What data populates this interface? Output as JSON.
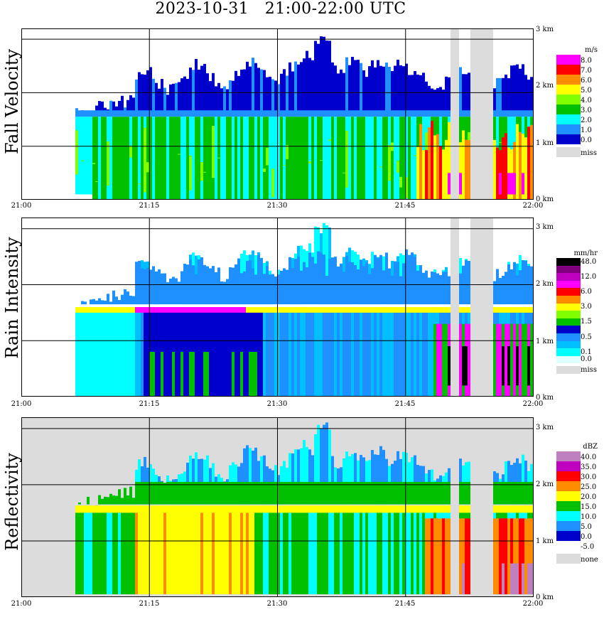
{
  "title": "2023-10-31   21:00-22:00 UTC",
  "x_ticks": [
    "21:00",
    "21:15",
    "21:30",
    "21:45",
    "22:00"
  ],
  "height_ticks": [
    "0 km",
    "1 km",
    "2 km",
    "3 km"
  ],
  "panels": [
    {
      "name": "fall-velocity",
      "ylabel": "Fall Velocity",
      "unit": "m/s",
      "legend": [
        {
          "label": "8.0",
          "color": "#ff00ff"
        },
        {
          "label": "7.0",
          "color": "#ff0000"
        },
        {
          "label": "6.0",
          "color": "#ff8c00"
        },
        {
          "label": "5.0",
          "color": "#ffff00"
        },
        {
          "label": "4.0",
          "color": "#7fff00"
        },
        {
          "label": "3.0",
          "color": "#00c000"
        },
        {
          "label": "2.0",
          "color": "#00ffff"
        },
        {
          "label": "1.0",
          "color": "#1e90ff"
        },
        {
          "label": "0.0",
          "color": "#0000cd"
        },
        {
          "label": "miss",
          "color": "#dcdcdc"
        }
      ]
    },
    {
      "name": "rain-intensity",
      "ylabel": "Rain Intensity",
      "unit": "mm/hr",
      "legend": [
        {
          "label": "48.0",
          "color": "#000000"
        },
        {
          "label": "",
          "color": "#800080"
        },
        {
          "label": "12.0",
          "color": "#c000c0"
        },
        {
          "label": "",
          "color": "#ff00ff"
        },
        {
          "label": "6.0",
          "color": "#ff0000"
        },
        {
          "label": "",
          "color": "#ff8c00"
        },
        {
          "label": "3.0",
          "color": "#ffff00"
        },
        {
          "label": "",
          "color": "#7fff00"
        },
        {
          "label": "1.5",
          "color": "#00c000"
        },
        {
          "label": "",
          "color": "#0000cd"
        },
        {
          "label": "0.5",
          "color": "#1e90ff"
        },
        {
          "label": "",
          "color": "#00bfff"
        },
        {
          "label": "0.1",
          "color": "#00ffff"
        },
        {
          "label": "0.0",
          "color": "#e0ffff"
        },
        {
          "label": "miss",
          "color": "#dcdcdc"
        }
      ]
    },
    {
      "name": "reflectivity",
      "ylabel": "Reflectivity",
      "unit": "dBZ",
      "legend": [
        {
          "label": "40.0",
          "color": "#c080c0"
        },
        {
          "label": "35.0",
          "color": "#c000c0"
        },
        {
          "label": "30.0",
          "color": "#ff0000"
        },
        {
          "label": "25.0",
          "color": "#ff8c00"
        },
        {
          "label": "20.0",
          "color": "#ffff00"
        },
        {
          "label": "15.0",
          "color": "#00c000"
        },
        {
          "label": "10.0",
          "color": "#00ffff"
        },
        {
          "label": "5.0",
          "color": "#1e90ff"
        },
        {
          "label": "0.0",
          "color": "#0000cd"
        },
        {
          "label": "-5.0",
          "color": "#ffffff"
        },
        {
          "label": "none",
          "color": "#dcdcdc"
        }
      ]
    }
  ],
  "chart_data": {
    "type": "heatmap",
    "title": "2023-10-31   21:00-22:00 UTC",
    "x_range": [
      "21:00",
      "22:00"
    ],
    "x_ticks": [
      "21:00",
      "21:15",
      "21:30",
      "21:45",
      "22:00"
    ],
    "y_range_km": [
      0,
      3.2
    ],
    "y_ticks_km": [
      0,
      1,
      2,
      3
    ],
    "grid": true,
    "legend_position": "right",
    "fields": [
      {
        "name": "Fall Velocity",
        "unit": "m/s",
        "levels": [
          0.0,
          1.0,
          2.0,
          3.0,
          4.0,
          5.0,
          6.0,
          7.0,
          8.0
        ]
      },
      {
        "name": "Rain Intensity",
        "unit": "mm/hr",
        "levels": [
          0.0,
          0.1,
          0.5,
          1.5,
          3.0,
          6.0,
          12.0,
          48.0
        ]
      },
      {
        "name": "Reflectivity",
        "unit": "dBZ",
        "levels": [
          -5.0,
          0.0,
          5.0,
          10.0,
          15.0,
          20.0,
          25.0,
          30.0,
          35.0,
          40.0
        ]
      }
    ],
    "missing_data_intervals": [
      [
        "21:50",
        "21:51"
      ],
      [
        "21:52",
        "21:54"
      ]
    ],
    "bright_band_height_km": 1.55,
    "echo_top_max_km": 3.0,
    "echo_start": "21:06"
  }
}
